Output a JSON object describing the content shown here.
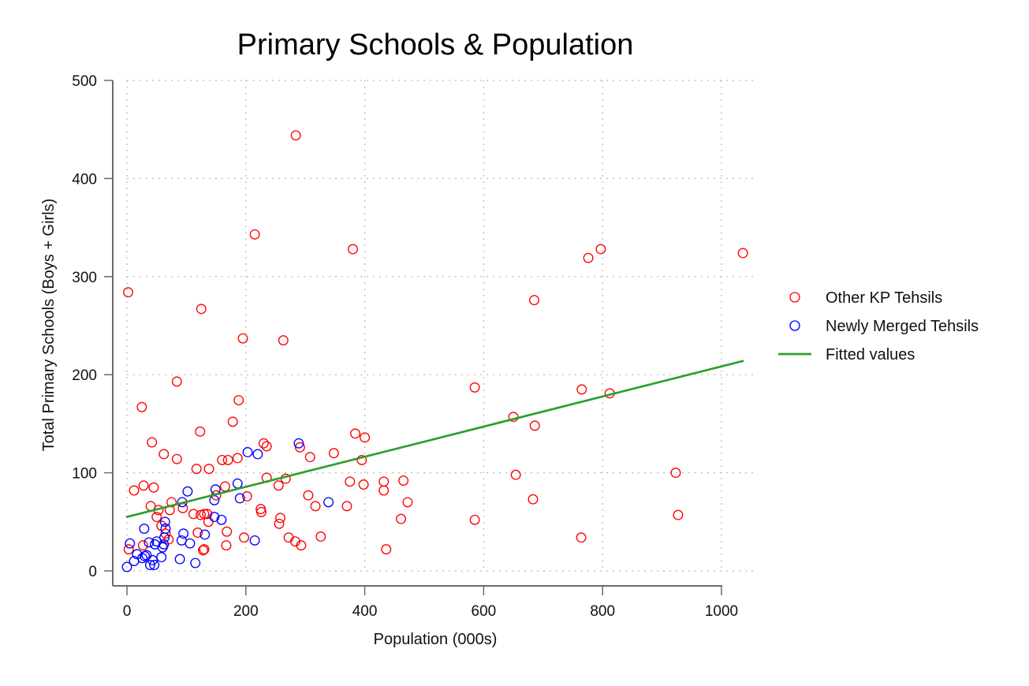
{
  "chart_data": {
    "type": "scatter",
    "title": "Primary Schools & Population",
    "xlabel": "Population (000s)",
    "ylabel": "Total Primary Schools (Boys + Girls)",
    "xlim": [
      0,
      1040
    ],
    "ylim": [
      0,
      500
    ],
    "x_ticks": [
      0,
      200,
      400,
      600,
      800,
      1000
    ],
    "y_ticks": [
      0,
      100,
      200,
      300,
      400,
      500
    ],
    "grid": true,
    "legend_position": "right",
    "series": [
      {
        "name": "Other KP Tehsils",
        "marker": "hollow-circle",
        "color": "#ff0000",
        "points": [
          {
            "x": 2,
            "y": 284
          },
          {
            "x": 3,
            "y": 22
          },
          {
            "x": 12,
            "y": 82
          },
          {
            "x": 25,
            "y": 167
          },
          {
            "x": 28,
            "y": 87
          },
          {
            "x": 27,
            "y": 26
          },
          {
            "x": 40,
            "y": 66
          },
          {
            "x": 42,
            "y": 131
          },
          {
            "x": 45,
            "y": 85
          },
          {
            "x": 50,
            "y": 55
          },
          {
            "x": 53,
            "y": 62
          },
          {
            "x": 58,
            "y": 46
          },
          {
            "x": 62,
            "y": 119
          },
          {
            "x": 65,
            "y": 38
          },
          {
            "x": 72,
            "y": 62
          },
          {
            "x": 75,
            "y": 70
          },
          {
            "x": 70,
            "y": 32
          },
          {
            "x": 84,
            "y": 193
          },
          {
            "x": 84,
            "y": 114
          },
          {
            "x": 94,
            "y": 64
          },
          {
            "x": 112,
            "y": 58
          },
          {
            "x": 117,
            "y": 104
          },
          {
            "x": 119,
            "y": 39
          },
          {
            "x": 123,
            "y": 142
          },
          {
            "x": 124,
            "y": 57
          },
          {
            "x": 125,
            "y": 267
          },
          {
            "x": 128,
            "y": 21
          },
          {
            "x": 130,
            "y": 22
          },
          {
            "x": 130,
            "y": 58
          },
          {
            "x": 135,
            "y": 58
          },
          {
            "x": 137,
            "y": 50
          },
          {
            "x": 138,
            "y": 104
          },
          {
            "x": 150,
            "y": 77
          },
          {
            "x": 160,
            "y": 113
          },
          {
            "x": 165,
            "y": 86
          },
          {
            "x": 167,
            "y": 26
          },
          {
            "x": 168,
            "y": 40
          },
          {
            "x": 170,
            "y": 113
          },
          {
            "x": 178,
            "y": 152
          },
          {
            "x": 186,
            "y": 115
          },
          {
            "x": 188,
            "y": 174
          },
          {
            "x": 195,
            "y": 237
          },
          {
            "x": 197,
            "y": 34
          },
          {
            "x": 202,
            "y": 76
          },
          {
            "x": 215,
            "y": 343
          },
          {
            "x": 225,
            "y": 63
          },
          {
            "x": 226,
            "y": 60
          },
          {
            "x": 230,
            "y": 130
          },
          {
            "x": 235,
            "y": 127
          },
          {
            "x": 235,
            "y": 95
          },
          {
            "x": 255,
            "y": 87
          },
          {
            "x": 256,
            "y": 48
          },
          {
            "x": 258,
            "y": 54
          },
          {
            "x": 263,
            "y": 235
          },
          {
            "x": 267,
            "y": 94
          },
          {
            "x": 272,
            "y": 34
          },
          {
            "x": 283,
            "y": 30
          },
          {
            "x": 284,
            "y": 444
          },
          {
            "x": 291,
            "y": 126
          },
          {
            "x": 293,
            "y": 26
          },
          {
            "x": 305,
            "y": 77
          },
          {
            "x": 308,
            "y": 116
          },
          {
            "x": 317,
            "y": 66
          },
          {
            "x": 326,
            "y": 35
          },
          {
            "x": 348,
            "y": 120
          },
          {
            "x": 370,
            "y": 66
          },
          {
            "x": 375,
            "y": 91
          },
          {
            "x": 380,
            "y": 328
          },
          {
            "x": 384,
            "y": 140
          },
          {
            "x": 395,
            "y": 113
          },
          {
            "x": 398,
            "y": 88
          },
          {
            "x": 400,
            "y": 136
          },
          {
            "x": 432,
            "y": 91
          },
          {
            "x": 432,
            "y": 82
          },
          {
            "x": 436,
            "y": 22
          },
          {
            "x": 461,
            "y": 53
          },
          {
            "x": 465,
            "y": 92
          },
          {
            "x": 472,
            "y": 70
          },
          {
            "x": 585,
            "y": 187
          },
          {
            "x": 585,
            "y": 52
          },
          {
            "x": 650,
            "y": 157
          },
          {
            "x": 654,
            "y": 98
          },
          {
            "x": 683,
            "y": 73
          },
          {
            "x": 685,
            "y": 276
          },
          {
            "x": 686,
            "y": 148
          },
          {
            "x": 764,
            "y": 34
          },
          {
            "x": 765,
            "y": 185
          },
          {
            "x": 776,
            "y": 319
          },
          {
            "x": 797,
            "y": 328
          },
          {
            "x": 812,
            "y": 181
          },
          {
            "x": 923,
            "y": 100
          },
          {
            "x": 927,
            "y": 57
          },
          {
            "x": 1036,
            "y": 324
          }
        ]
      },
      {
        "name": "Newly Merged Tehsils",
        "marker": "hollow-circle",
        "color": "#0000ff",
        "points": [
          {
            "x": 0,
            "y": 4
          },
          {
            "x": 5,
            "y": 28
          },
          {
            "x": 12,
            "y": 10
          },
          {
            "x": 17,
            "y": 17
          },
          {
            "x": 26,
            "y": 13
          },
          {
            "x": 29,
            "y": 43
          },
          {
            "x": 30,
            "y": 15
          },
          {
            "x": 33,
            "y": 16
          },
          {
            "x": 37,
            "y": 29
          },
          {
            "x": 39,
            "y": 6
          },
          {
            "x": 43,
            "y": 11
          },
          {
            "x": 46,
            "y": 6
          },
          {
            "x": 47,
            "y": 27
          },
          {
            "x": 50,
            "y": 30
          },
          {
            "x": 58,
            "y": 14
          },
          {
            "x": 60,
            "y": 24
          },
          {
            "x": 62,
            "y": 27
          },
          {
            "x": 63,
            "y": 34
          },
          {
            "x": 64,
            "y": 50
          },
          {
            "x": 65,
            "y": 43
          },
          {
            "x": 89,
            "y": 12
          },
          {
            "x": 92,
            "y": 31
          },
          {
            "x": 93,
            "y": 70
          },
          {
            "x": 95,
            "y": 38
          },
          {
            "x": 102,
            "y": 81
          },
          {
            "x": 106,
            "y": 28
          },
          {
            "x": 115,
            "y": 8
          },
          {
            "x": 131,
            "y": 37
          },
          {
            "x": 147,
            "y": 72
          },
          {
            "x": 147,
            "y": 55
          },
          {
            "x": 149,
            "y": 83
          },
          {
            "x": 159,
            "y": 52
          },
          {
            "x": 186,
            "y": 89
          },
          {
            "x": 190,
            "y": 74
          },
          {
            "x": 203,
            "y": 121
          },
          {
            "x": 215,
            "y": 31
          },
          {
            "x": 220,
            "y": 119
          },
          {
            "x": 289,
            "y": 130
          },
          {
            "x": 339,
            "y": 70
          }
        ]
      },
      {
        "name": "Fitted values",
        "type": "line",
        "color": "#2ca02c",
        "points": [
          {
            "x": 0,
            "y": 55
          },
          {
            "x": 1036,
            "y": 214
          }
        ]
      }
    ]
  }
}
